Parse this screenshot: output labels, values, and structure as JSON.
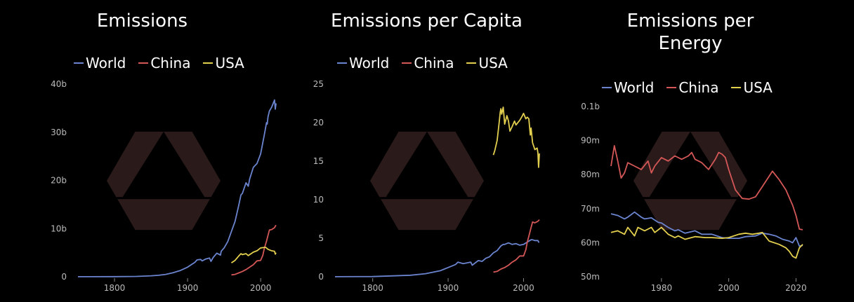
{
  "colors": {
    "World": "#6b84cf",
    "China": "#d45757",
    "USA": "#e3cf4e",
    "watermark": "#2b1a1a"
  },
  "chart_data": [
    {
      "type": "line",
      "title": "Emissions",
      "legend": [
        "World",
        "China",
        "USA"
      ],
      "xlim": [
        1750,
        2021
      ],
      "ylim": [
        0,
        40000000000
      ],
      "xticks": [
        1800,
        1900,
        2000
      ],
      "xtick_labels": [
        "1800",
        "1900",
        "2000"
      ],
      "yticks": [
        0,
        10000000000,
        20000000000,
        30000000000,
        40000000000
      ],
      "ytick_labels": [
        "0",
        "10b",
        "20b",
        "30b",
        "40b"
      ],
      "series": [
        {
          "name": "World",
          "x": [
            1750,
            1800,
            1830,
            1850,
            1860,
            1870,
            1880,
            1890,
            1900,
            1905,
            1910,
            1913,
            1918,
            1920,
            1925,
            1930,
            1932,
            1935,
            1940,
            1945,
            1946,
            1950,
            1955,
            1960,
            1965,
            1970,
            1973,
            1975,
            1980,
            1983,
            1985,
            1990,
            1995,
            2000,
            2005,
            2008,
            2009,
            2010,
            2012,
            2015,
            2019,
            2020,
            2021
          ],
          "y": [
            10000000.0,
            30000000.0,
            70000000.0,
            200000000.0,
            300000000.0,
            500000000.0,
            850000000.0,
            1300000000.0,
            2000000000.0,
            2500000000.0,
            3000000000.0,
            3500000000.0,
            3600000000.0,
            3300000000.0,
            3700000000.0,
            3900000000.0,
            3200000000.0,
            4000000000.0,
            4900000000.0,
            4500000000.0,
            5300000000.0,
            6000000000.0,
            7300000000.0,
            9400000000.0,
            11500000000.0,
            14800000000.0,
            17000000000.0,
            17300000000.0,
            19500000000.0,
            18800000000.0,
            20300000000.0,
            22700000000.0,
            23500000000.0,
            25500000000.0,
            29500000000.0,
            32000000000.0,
            31700000000.0,
            33200000000.0,
            34400000000.0,
            35200000000.0,
            36700000000.0,
            34800000000.0,
            36000000000.0
          ]
        },
        {
          "name": "China",
          "x": [
            1960,
            1965,
            1970,
            1975,
            1980,
            1985,
            1990,
            1995,
            2000,
            2003,
            2005,
            2008,
            2010,
            2012,
            2015,
            2019,
            2020,
            2021
          ],
          "y": [
            400000000.0,
            500000000.0,
            800000000.0,
            1100000000.0,
            1500000000.0,
            2000000000.0,
            2500000000.0,
            3300000000.0,
            3400000000.0,
            4500000000.0,
            5900000000.0,
            7400000000.0,
            8600000000.0,
            9700000000.0,
            9800000000.0,
            10200000000.0,
            10500000000.0,
            10700000000.0
          ]
        },
        {
          "name": "USA",
          "x": [
            1960,
            1965,
            1970,
            1973,
            1975,
            1980,
            1983,
            1985,
            1990,
            1995,
            2000,
            2005,
            2007,
            2010,
            2015,
            2019,
            2020,
            2021
          ],
          "y": [
            2900000000.0,
            3400000000.0,
            4300000000.0,
            4800000000.0,
            4600000000.0,
            4800000000.0,
            4400000000.0,
            4600000000.0,
            5100000000.0,
            5400000000.0,
            6000000000.0,
            6100000000.0,
            6100000000.0,
            5700000000.0,
            5400000000.0,
            5300000000.0,
            4700000000.0,
            5000000000.0
          ]
        }
      ]
    },
    {
      "type": "line",
      "title": "Emissions per Capita",
      "legend": [
        "World",
        "China",
        "USA"
      ],
      "xlim": [
        1750,
        2021
      ],
      "ylim": [
        0,
        25
      ],
      "xticks": [
        1800,
        1900,
        2000
      ],
      "xtick_labels": [
        "1800",
        "1900",
        "2000"
      ],
      "yticks": [
        0,
        5,
        10,
        15,
        20,
        25
      ],
      "ytick_labels": [
        "0",
        "5",
        "10",
        "15",
        "20",
        "25"
      ],
      "series": [
        {
          "name": "World",
          "x": [
            1750,
            1800,
            1850,
            1870,
            1890,
            1900,
            1910,
            1913,
            1920,
            1930,
            1932,
            1940,
            1945,
            1950,
            1955,
            1960,
            1965,
            1970,
            1973,
            1975,
            1980,
            1985,
            1990,
            1995,
            2000,
            2005,
            2010,
            2012,
            2015,
            2019,
            2020,
            2021
          ],
          "y": [
            0.01,
            0.03,
            0.2,
            0.4,
            0.8,
            1.2,
            1.6,
            1.9,
            1.7,
            1.9,
            1.5,
            2.1,
            2.0,
            2.4,
            2.6,
            3.1,
            3.4,
            4.0,
            4.2,
            4.2,
            4.4,
            4.2,
            4.3,
            4.1,
            4.2,
            4.5,
            4.8,
            4.8,
            4.7,
            4.7,
            4.5,
            4.5
          ]
        },
        {
          "name": "China",
          "x": [
            1960,
            1965,
            1970,
            1975,
            1980,
            1985,
            1990,
            1995,
            2000,
            2003,
            2005,
            2008,
            2010,
            2012,
            2015,
            2019,
            2020,
            2021
          ],
          "y": [
            0.6,
            0.7,
            1.0,
            1.2,
            1.5,
            1.9,
            2.2,
            2.7,
            2.7,
            3.5,
            4.5,
            5.6,
            6.4,
            7.1,
            7.0,
            7.2,
            7.3,
            7.4
          ]
        },
        {
          "name": "USA",
          "x": [
            1960,
            1962,
            1965,
            1967,
            1968,
            1969,
            1970,
            1971,
            1973,
            1974,
            1975,
            1978,
            1980,
            1982,
            1985,
            1988,
            1990,
            1995,
            1998,
            2000,
            2003,
            2005,
            2007,
            2009,
            2010,
            2012,
            2015,
            2018,
            2019,
            2020,
            2021
          ],
          "y": [
            15.8,
            16.4,
            17.7,
            19.4,
            20.3,
            21.3,
            21.8,
            21.1,
            22.0,
            21.0,
            19.8,
            20.9,
            20.2,
            18.9,
            19.5,
            20.2,
            19.7,
            20.3,
            20.8,
            21.2,
            20.5,
            20.7,
            20.5,
            18.4,
            19.3,
            17.4,
            16.5,
            16.7,
            16.1,
            14.2,
            16.0
          ]
        }
      ]
    },
    {
      "type": "line",
      "title": "Emissions per Energy",
      "legend": [
        "World",
        "China",
        "USA"
      ],
      "xlim": [
        1965,
        2022
      ],
      "ylim": [
        50000000,
        100000000
      ],
      "xticks": [
        1980,
        2000,
        2020
      ],
      "xtick_labels": [
        "1980",
        "2000",
        "2020"
      ],
      "yticks": [
        50000000,
        60000000,
        70000000,
        80000000,
        90000000,
        100000000
      ],
      "ytick_labels": [
        "50m",
        "60m",
        "70m",
        "80m",
        "90m",
        "0.1b"
      ],
      "series": [
        {
          "name": "World",
          "x": [
            1965,
            1967,
            1969,
            1970,
            1972,
            1974,
            1975,
            1977,
            1979,
            1980,
            1982,
            1984,
            1985,
            1987,
            1990,
            1992,
            1995,
            1998,
            2000,
            2003,
            2005,
            2008,
            2010,
            2012,
            2014,
            2016,
            2018,
            2019,
            2020,
            2021,
            2022
          ],
          "y": [
            68500000.0,
            68000000.0,
            67000000.0,
            67500000.0,
            69000000.0,
            67500000.0,
            67000000.0,
            67300000.0,
            66000000.0,
            65800000.0,
            64500000.0,
            63500000.0,
            63800000.0,
            62800000.0,
            63500000.0,
            62500000.0,
            62500000.0,
            61500000.0,
            61300000.0,
            61300000.0,
            61800000.0,
            62000000.0,
            62800000.0,
            62500000.0,
            62000000.0,
            61000000.0,
            60500000.0,
            60000000.0,
            61500000.0,
            59000000.0,
            59200000.0
          ]
        },
        {
          "name": "China",
          "x": [
            1965,
            1966,
            1967,
            1968,
            1969,
            1970,
            1972,
            1974,
            1976,
            1977,
            1978,
            1980,
            1982,
            1984,
            1986,
            1988,
            1989,
            1990,
            1992,
            1994,
            1996,
            1997,
            1998,
            1999,
            2000,
            2002,
            2004,
            2006,
            2008,
            2010,
            2012,
            2013,
            2015,
            2017,
            2019,
            2020,
            2021,
            2022
          ],
          "y": [
            82500000.0,
            88500000.0,
            84000000.0,
            79000000.0,
            80500000.0,
            83500000.0,
            82500000.0,
            81500000.0,
            84000000.0,
            80500000.0,
            82500000.0,
            85000000.0,
            84000000.0,
            85500000.0,
            84500000.0,
            85500000.0,
            86500000.0,
            84500000.0,
            83500000.0,
            81500000.0,
            84500000.0,
            86500000.0,
            86000000.0,
            85000000.0,
            81500000.0,
            75500000.0,
            73000000.0,
            72800000.0,
            73500000.0,
            76500000.0,
            79500000.0,
            81000000.0,
            78500000.0,
            75500000.0,
            71000000.0,
            68000000.0,
            64000000.0,
            63800000.0
          ]
        },
        {
          "name": "USA",
          "x": [
            1965,
            1967,
            1969,
            1970,
            1972,
            1973,
            1975,
            1977,
            1978,
            1980,
            1982,
            1984,
            1985,
            1987,
            1990,
            1993,
            1995,
            1998,
            2000,
            2003,
            2005,
            2007,
            2009,
            2010,
            2012,
            2015,
            2017,
            2018,
            2019,
            2020,
            2021,
            2022
          ],
          "y": [
            63000000.0,
            63500000.0,
            62500000.0,
            64500000.0,
            62000000.0,
            64500000.0,
            63500000.0,
            64500000.0,
            63000000.0,
            64500000.0,
            62500000.0,
            61500000.0,
            62000000.0,
            61000000.0,
            61800000.0,
            61500000.0,
            61500000.0,
            61300000.0,
            61500000.0,
            62500000.0,
            62800000.0,
            62500000.0,
            62800000.0,
            63000000.0,
            60500000.0,
            59500000.0,
            58500000.0,
            57500000.0,
            56000000.0,
            55500000.0,
            58500000.0,
            59500000.0
          ]
        }
      ]
    }
  ]
}
